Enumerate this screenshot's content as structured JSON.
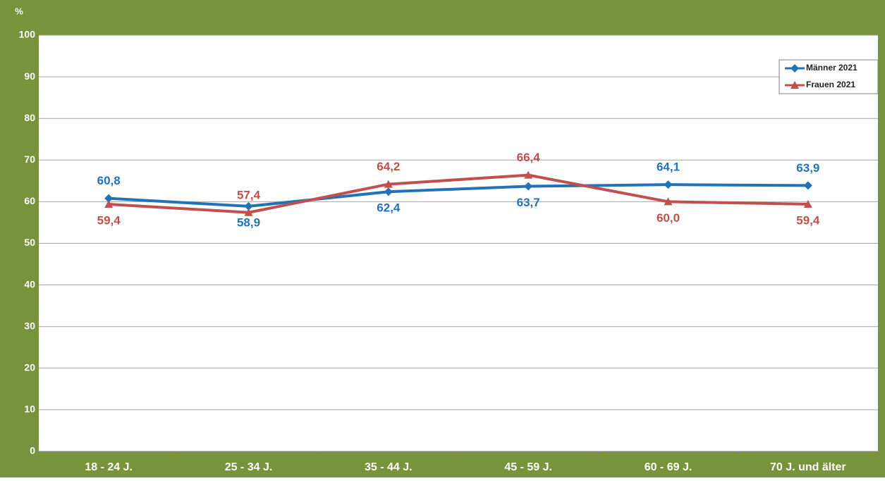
{
  "chart_data": {
    "type": "line",
    "ylabel": "%",
    "categories": [
      "18 - 24 J.",
      "25 - 34 J.",
      "35 - 44 J.",
      "45 - 59 J.",
      "60 - 69 J.",
      "70 J. und älter"
    ],
    "series": [
      {
        "name": "Männer 2021",
        "color": "#2272b8",
        "marker": "diamond",
        "values": [
          60.8,
          58.9,
          62.4,
          63.7,
          64.1,
          63.9
        ],
        "value_labels": [
          "60,8",
          "58,9",
          "62,4",
          "63,7",
          "64,1",
          "63,9"
        ]
      },
      {
        "name": "Frauen 2021",
        "color": "#c0504d",
        "marker": "triangle",
        "values": [
          59.4,
          57.4,
          64.2,
          66.4,
          60.0,
          59.4
        ],
        "value_labels": [
          "59,4",
          "57,4",
          "64,2",
          "66,4",
          "60,0",
          "59,4"
        ]
      }
    ],
    "ylim": [
      0,
      100
    ],
    "yticks": [
      0,
      10,
      20,
      30,
      40,
      50,
      60,
      70,
      80,
      90,
      100
    ],
    "grid": true,
    "legend": "upper right"
  }
}
